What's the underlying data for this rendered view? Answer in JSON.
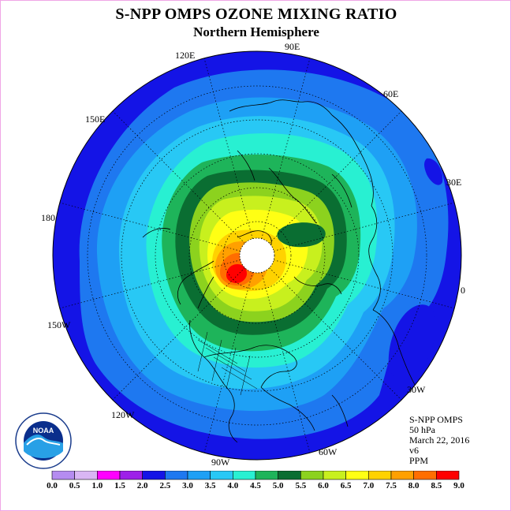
{
  "title": "S-NPP OMPS OZONE MIXING RATIO",
  "subtitle": "Northern Hemisphere",
  "longitudes": {
    "lon_120E": "120E",
    "lon_90E": "90E",
    "lon_60E": "60E",
    "lon_150E": "150E",
    "lon_30E": "30E",
    "lon_180": "180",
    "lon_0": "0",
    "lon_150W": "150W",
    "lon_30W": "30W",
    "lon_120W": "120W",
    "lon_60W": "60W",
    "lon_90W": "90W"
  },
  "info": {
    "instrument": "S-NPP OMPS",
    "level": "50 hPa",
    "date": "March 22, 2016",
    "version": "v6",
    "units": "PPM"
  },
  "colorbar": {
    "labels": [
      "0.0",
      "0.5",
      "1.0",
      "1.5",
      "2.0",
      "2.5",
      "3.0",
      "3.5",
      "4.0",
      "4.5",
      "5.0",
      "5.5",
      "6.0",
      "6.5",
      "7.0",
      "7.5",
      "8.0",
      "8.5",
      "9.0"
    ],
    "colors": [
      "#b58cf0",
      "#d9b6f4",
      "#ff00ff",
      "#9d20e8",
      "#1414e6",
      "#1e78f0",
      "#1ea0f5",
      "#28c8f5",
      "#28f0d2",
      "#1eb45a",
      "#0a6e32",
      "#8cd21e",
      "#c8f01e",
      "#ffff14",
      "#ffd200",
      "#ffa000",
      "#ff6e00",
      "#ff0000",
      "#8c5a3c"
    ]
  },
  "logo": {
    "text": "NOAA",
    "ring_text": "NATIONAL OCEANIC AND ATMOSPHERIC ADMINISTRATION · U.S. DEPARTMENT OF COMMERCE"
  }
}
